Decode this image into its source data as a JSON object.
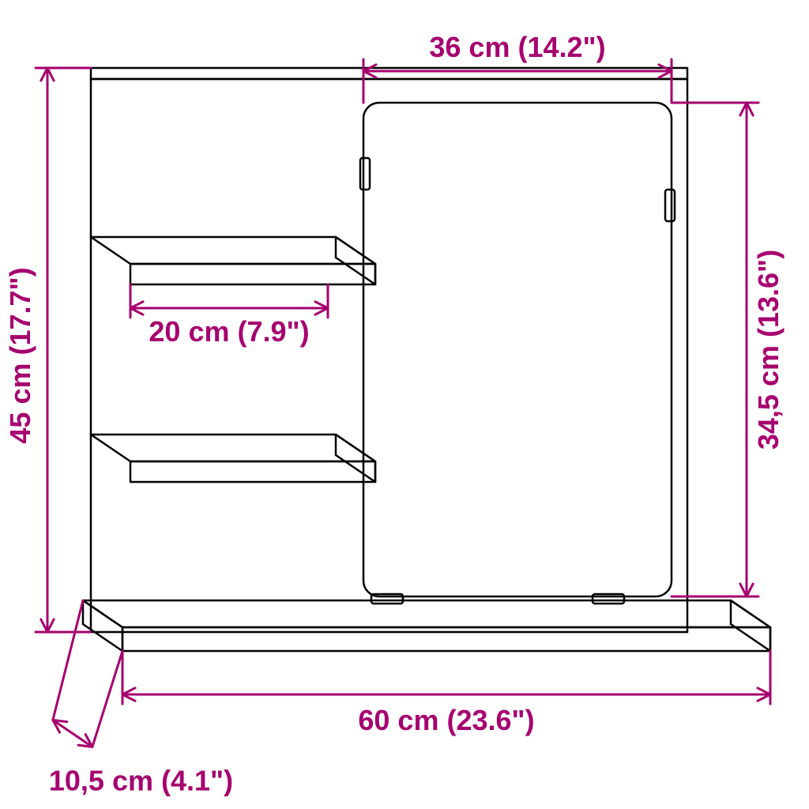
{
  "colors": {
    "accent": "#a6006f",
    "outline": "#000000",
    "background": "#ffffff"
  },
  "stroke": {
    "outline_width": 2.5,
    "dim_width": 3
  },
  "font": {
    "label_size": 36,
    "label_weight": "bold"
  },
  "arrow": {
    "head_len": 18,
    "head_w": 7
  },
  "dimensions": {
    "top": {
      "label": "36 cm (14.2\")"
    },
    "right": {
      "label": "34,5 cm (13.6\")"
    },
    "left": {
      "label": "45 cm (17.7\")"
    },
    "shelf": {
      "label": "20 cm (7.9\")"
    },
    "bottom": {
      "label": "60 cm (23.6\")"
    },
    "depth": {
      "label": "10,5 cm (4.1\")"
    }
  }
}
